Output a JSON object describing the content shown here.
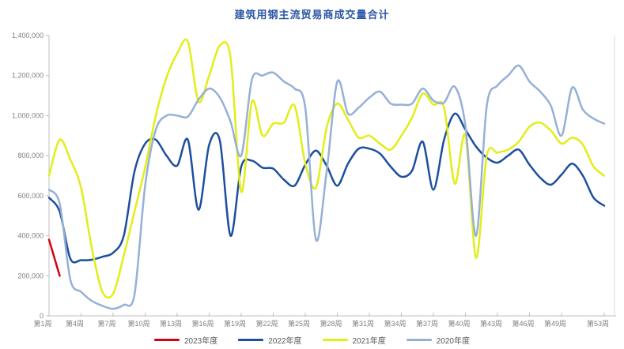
{
  "page": {
    "title": "建筑用钢主流贸易商成交量合计"
  },
  "chart_data": {
    "type": "line",
    "title": "建筑用钢主流贸易商成交量合计",
    "title_color": "#2B56A7",
    "grid": false,
    "legend_position": "bottom",
    "x_axis": {
      "min_week": 1,
      "max_week": 53,
      "tick_weeks": [
        1,
        4,
        7,
        10,
        13,
        16,
        19,
        22,
        25,
        28,
        31,
        34,
        37,
        40,
        43,
        46,
        49,
        53
      ],
      "tick_labels": [
        "第1周",
        "第4周",
        "第7周",
        "第10周",
        "第13周",
        "第16周",
        "第19周",
        "第22周",
        "第25周",
        "第28周",
        "第31周",
        "第34周",
        "第37周",
        "第40周",
        "第43周",
        "第46周",
        "第49周",
        "第53周"
      ]
    },
    "y_axis": {
      "min": 0,
      "max": 1400000,
      "step": 200000,
      "tick_labels": [
        "0",
        "200,000",
        "400,000",
        "600,000",
        "800,000",
        "1,000,000",
        "1,200,000",
        "1,400,000"
      ]
    },
    "axis_color": "#BFBFBF",
    "axis_text_color": "#808080",
    "series": [
      {
        "name": "2023年度",
        "color": "#D7000F",
        "start_week": 1,
        "values": [
          380000,
          200000
        ]
      },
      {
        "name": "2022年度",
        "color": "#1D4F9E",
        "start_week": 1,
        "values": [
          590000,
          520000,
          285000,
          278000,
          280000,
          295000,
          315000,
          400000,
          720000,
          860000,
          880000,
          800000,
          750000,
          880000,
          530000,
          855000,
          875000,
          400000,
          745000,
          775000,
          740000,
          735000,
          680000,
          650000,
          755000,
          825000,
          750000,
          650000,
          760000,
          835000,
          835000,
          810000,
          745000,
          695000,
          725000,
          870000,
          630000,
          880000,
          1010000,
          930000,
          845000,
          790000,
          765000,
          800000,
          830000,
          755000,
          690000,
          655000,
          705000,
          760000,
          700000,
          590000,
          550000
        ]
      },
      {
        "name": "2021年度",
        "color": "#E2EE17",
        "start_week": 1,
        "values": [
          700000,
          880000,
          780000,
          640000,
          340000,
          120000,
          110000,
          300000,
          520000,
          740000,
          1000000,
          1190000,
          1310000,
          1370000,
          1070000,
          1200000,
          1350000,
          1290000,
          620000,
          1070000,
          900000,
          960000,
          965000,
          1050000,
          760000,
          640000,
          940000,
          1060000,
          980000,
          890000,
          900000,
          860000,
          830000,
          900000,
          990000,
          1110000,
          1055000,
          1040000,
          660000,
          900000,
          290000,
          800000,
          815000,
          830000,
          870000,
          945000,
          965000,
          925000,
          860000,
          890000,
          855000,
          745000,
          700000
        ]
      },
      {
        "name": "2020年度",
        "color": "#96B0D6",
        "start_week": 1,
        "values": [
          630000,
          560000,
          180000,
          120000,
          75000,
          50000,
          35000,
          55000,
          105000,
          650000,
          930000,
          1000000,
          1000000,
          995000,
          1080000,
          1135000,
          1090000,
          970000,
          800000,
          1180000,
          1200000,
          1215000,
          1170000,
          1135000,
          1040000,
          380000,
          720000,
          1170000,
          1010000,
          1040000,
          1090000,
          1120000,
          1060000,
          1055000,
          1060000,
          1135000,
          1075000,
          1065000,
          1145000,
          950000,
          400000,
          1050000,
          1150000,
          1200000,
          1250000,
          1170000,
          1120000,
          1050000,
          900000,
          1140000,
          1030000,
          985000,
          960000
        ]
      }
    ]
  }
}
